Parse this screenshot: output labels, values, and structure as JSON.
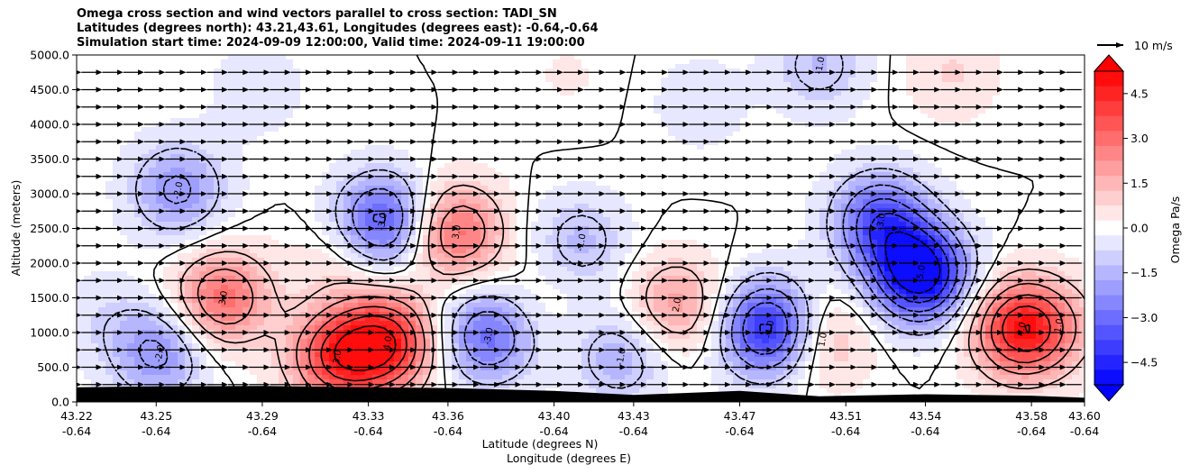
{
  "chart_data": {
    "type": "heatmap",
    "title_lines": [
      "Omega cross section and wind vectors parallel to cross section: TADI_SN",
      "Latitudes (degrees north): 43.21,43.61, Longitudes (degrees east): -0.64,-0.64",
      "Simulation start time: 2024-09-09 12:00:00, Valid time: 2024-09-11 19:00:00"
    ],
    "xlabel": "Latitude (degrees N)",
    "xlabel2": "Longitude (degrees E)",
    "ylabel": "Altitude (meters)",
    "ylim": [
      0,
      5000
    ],
    "xlim": [
      43.22,
      43.6
    ],
    "y_ticks": [
      "0.0",
      "500.0",
      "1000.0",
      "1500.0",
      "2000.0",
      "2500.0",
      "3000.0",
      "3500.0",
      "4000.0",
      "4500.0",
      "5000.0"
    ],
    "x_ticks": [
      {
        "lat": "43.22",
        "lon": "-0.64"
      },
      {
        "lat": "43.25",
        "lon": "-0.64"
      },
      {
        "lat": "43.29",
        "lon": "-0.64"
      },
      {
        "lat": "43.33",
        "lon": "-0.64"
      },
      {
        "lat": "43.36",
        "lon": "-0.64"
      },
      {
        "lat": "43.40",
        "lon": "-0.64"
      },
      {
        "lat": "43.43",
        "lon": "-0.64"
      },
      {
        "lat": "43.47",
        "lon": "-0.64"
      },
      {
        "lat": "43.51",
        "lon": "-0.64"
      },
      {
        "lat": "43.54",
        "lon": "-0.64"
      },
      {
        "lat": "43.58",
        "lon": "-0.64"
      },
      {
        "lat": "43.60",
        "lon": "-0.64"
      }
    ],
    "colorbar": {
      "label": "Omega Pa/s",
      "range": [
        -5.25,
        5.25
      ],
      "ticks": [
        "4.5",
        "3.0",
        "1.5",
        "0.0",
        "−1.5",
        "−3.0",
        "−4.5"
      ],
      "tick_values": [
        4.5,
        3.0,
        1.5,
        0.0,
        -1.5,
        -3.0,
        -4.5
      ],
      "colormap": "bwr"
    },
    "vector_key": {
      "label": "10 m/s",
      "direction": "right"
    },
    "wind_direction": "left",
    "contour_levels": [
      -5,
      -4,
      -3,
      -2,
      -1,
      0,
      1,
      2,
      3,
      4,
      5
    ],
    "contour_labels": [
      "0.0",
      "-1.0",
      "-2.0",
      "2.0",
      "1.0",
      "-3.0",
      "3.0",
      "4.0",
      "-4.0",
      "-5.0"
    ],
    "features": [
      {
        "lat": 43.337,
        "alt": 850,
        "omega": 4.5
      },
      {
        "lat": 43.318,
        "alt": 650,
        "omega": 3.8
      },
      {
        "lat": 43.275,
        "alt": 1500,
        "omega": 3.0
      },
      {
        "lat": 43.363,
        "alt": 2450,
        "omega": 3.0
      },
      {
        "lat": 43.576,
        "alt": 1050,
        "omega": 4.5
      },
      {
        "lat": 43.446,
        "alt": 1400,
        "omega": 2.0
      },
      {
        "lat": 43.501,
        "alt": 900,
        "omega": 1.5
      },
      {
        "lat": 43.59,
        "alt": 1100,
        "omega": 1.0
      },
      {
        "lat": 43.32,
        "alt": 2050,
        "omega": 0.8
      },
      {
        "lat": 43.538,
        "alt": 1850,
        "omega": -5.8
      },
      {
        "lat": 43.523,
        "alt": 2600,
        "omega": -3.5
      },
      {
        "lat": 43.335,
        "alt": 2600,
        "omega": -3.5
      },
      {
        "lat": 43.375,
        "alt": 950,
        "omega": -3.0
      },
      {
        "lat": 43.481,
        "alt": 1050,
        "omega": -4.5
      },
      {
        "lat": 43.258,
        "alt": 3050,
        "omega": -2.2
      },
      {
        "lat": 43.251,
        "alt": 700,
        "omega": -2.2
      },
      {
        "lat": 43.41,
        "alt": 2300,
        "omega": -1.4
      },
      {
        "lat": 43.425,
        "alt": 650,
        "omega": -1.6
      },
      {
        "lat": 43.5,
        "alt": 4850,
        "omega": -1.3
      },
      {
        "lat": 43.455,
        "alt": 4300,
        "omega": -0.6
      },
      {
        "lat": 43.288,
        "alt": 4500,
        "omega": -0.6
      },
      {
        "lat": 43.23,
        "alt": 1200,
        "omega": -0.6
      },
      {
        "lat": 43.55,
        "alt": 4750,
        "omega": 0.8
      },
      {
        "lat": 43.405,
        "alt": 4700,
        "omega": 0.3
      },
      {
        "lat": 43.392,
        "alt": 1500,
        "omega": 0.4
      }
    ],
    "terrain": [
      [
        43.22,
        210
      ],
      [
        43.25,
        225
      ],
      [
        43.29,
        230
      ],
      [
        43.33,
        210
      ],
      [
        43.36,
        200
      ],
      [
        43.4,
        160
      ],
      [
        43.43,
        100
      ],
      [
        43.47,
        160
      ],
      [
        43.5,
        80
      ],
      [
        43.54,
        110
      ],
      [
        43.58,
        90
      ],
      [
        43.6,
        60
      ]
    ]
  }
}
